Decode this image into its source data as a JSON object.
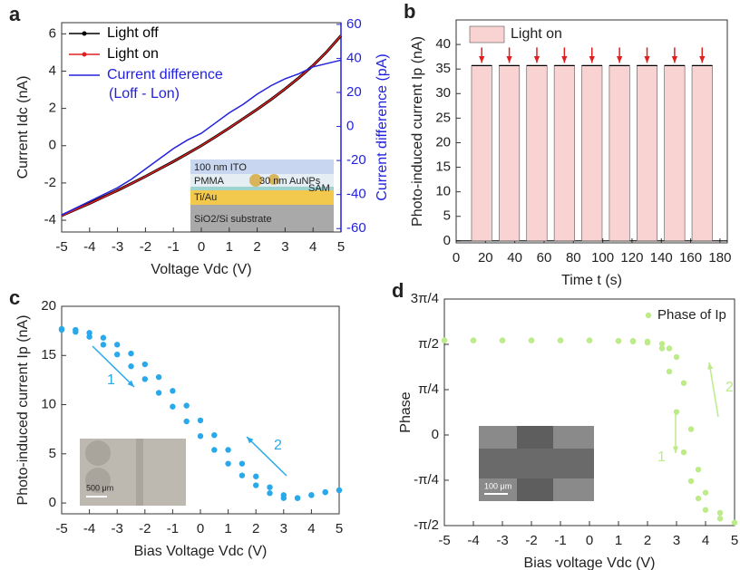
{
  "chart_data": [
    {
      "type": "line",
      "panel_label": "a",
      "xlabel": "Voltage Vdc (V)",
      "ylabel": "Current Idc (nA)",
      "y2label": "Current difference (pA)",
      "x": [
        -5,
        -4.5,
        -4,
        -3.5,
        -3,
        -2.5,
        -2,
        -1.5,
        -1,
        -0.5,
        0,
        0.5,
        1,
        1.5,
        2,
        2.5,
        3,
        3.5,
        4,
        4.5,
        5
      ],
      "series": [
        {
          "name": "Light off",
          "color": "#000000",
          "values": [
            -3.75,
            -3.42,
            -3.1,
            -2.75,
            -2.4,
            -2.03,
            -1.65,
            -1.25,
            -0.85,
            -0.43,
            0,
            0.47,
            0.95,
            1.45,
            1.95,
            2.48,
            3.05,
            3.65,
            4.3,
            5.05,
            5.9
          ]
        },
        {
          "name": "Light on",
          "color": "#e02020",
          "values": [
            -3.76,
            -3.43,
            -3.1,
            -2.76,
            -2.4,
            -2.03,
            -1.65,
            -1.25,
            -0.85,
            -0.43,
            0,
            0.47,
            0.95,
            1.45,
            1.95,
            2.48,
            3.05,
            3.65,
            4.3,
            5.05,
            5.9
          ]
        },
        {
          "name": "Current difference",
          "color": "#2222dd",
          "axis": "y2",
          "values": [
            -52,
            -48,
            -44,
            -40,
            -36,
            -31,
            -25,
            -19,
            -13,
            -8,
            -4,
            2,
            8,
            13,
            19,
            24,
            28,
            31,
            35,
            37,
            39
          ]
        }
      ],
      "legend_note": "(Loff - Lon)",
      "xlim": [
        -5,
        5
      ],
      "xticks": [
        -5,
        -4,
        -3,
        -2,
        -1,
        0,
        1,
        2,
        3,
        4,
        5
      ],
      "ylim": [
        -4.63,
        6.6
      ],
      "yticks": [
        -4,
        -2,
        0,
        2,
        4,
        6
      ],
      "y2lim": [
        -62,
        61
      ],
      "y2ticks": [
        -60,
        -40,
        -20,
        0,
        20,
        40,
        60
      ],
      "inset_labels": [
        "100 nm ITO",
        "PMMA",
        "30 nm AuNPs",
        "SAM",
        "Ti/Au",
        "SiO2/Si substrate"
      ]
    },
    {
      "type": "pulse",
      "panel_label": "b",
      "xlabel": "Time t (s)",
      "ylabel": "Photo-induced current Ip (nA)",
      "series": [
        {
          "name": "Light on",
          "color": "#f9d2d2",
          "start": [
            10.5,
            29.3,
            48.1,
            66.9,
            85.7,
            104.5,
            123.3,
            142.1,
            160.9
          ],
          "end": [
            24.4,
            43.2,
            62.0,
            80.8,
            99.6,
            118.4,
            137.2,
            156.0,
            174.8
          ],
          "values": [
            35.7,
            35.7,
            35.7,
            35.7,
            35.7,
            35.7,
            35.7,
            35.7,
            35.7
          ]
        }
      ],
      "line_color": "#000000",
      "arrow_color": "#e02020",
      "xlim": [
        0,
        185
      ],
      "xticks": [
        0,
        20,
        40,
        60,
        80,
        100,
        120,
        140,
        160,
        180
      ],
      "ylim": [
        -0.4,
        45
      ],
      "yticks": [
        0,
        5,
        10,
        15,
        20,
        25,
        30,
        35,
        40
      ]
    },
    {
      "type": "scatter",
      "panel_label": "c",
      "xlabel": "Bias Voltage Vdc (V)",
      "ylabel": "Photo-induced current Ip (nA)",
      "series": [
        {
          "color": "#29a9ea",
          "x": [
            -5,
            -4.5,
            -4,
            -3.5,
            -3,
            -2.5,
            -2,
            -1.5,
            -1,
            -0.5,
            0,
            0.5,
            1,
            1.5,
            2,
            2.5,
            3,
            3.5,
            4,
            4.5,
            5
          ],
          "values": [
            17.6,
            17.4,
            16.9,
            16.1,
            15.1,
            13.9,
            12.6,
            11.2,
            9.8,
            8.3,
            6.8,
            5.4,
            4.0,
            2.8,
            1.8,
            1.0,
            0.5,
            0.5,
            0.8,
            1.1,
            1.3
          ]
        },
        {
          "color": "#29a9ea",
          "x": [
            -5,
            -4.5,
            -4,
            -3.5,
            -3,
            -2.5,
            -2,
            -1.5,
            -1,
            -0.5,
            0,
            0.5,
            1,
            1.5,
            2,
            2.5,
            3,
            3.5,
            4,
            4.5,
            5
          ],
          "values": [
            17.7,
            17.6,
            17.3,
            16.8,
            16.1,
            15.2,
            14.1,
            12.8,
            11.4,
            9.9,
            8.4,
            6.9,
            5.4,
            4.0,
            2.7,
            1.6,
            0.8,
            0.5,
            0.8,
            1.1,
            1.3
          ]
        }
      ],
      "annotations": [
        "1",
        "2"
      ],
      "scale_bar": "500 μm",
      "xlim": [
        -5,
        5
      ],
      "xticks": [
        -5,
        -4,
        -3,
        -2,
        -1,
        0,
        1,
        2,
        3,
        4,
        5
      ],
      "ylim": [
        -1.1,
        20
      ],
      "yticks": [
        0,
        5,
        10,
        15,
        20
      ]
    },
    {
      "type": "scatter",
      "panel_label": "d",
      "xlabel": "Bias voltage Vdc (V)",
      "ylabel": "Phase",
      "series": [
        {
          "name": "Phase of Ip",
          "color": "#bdeb88",
          "x": [
            -5,
            -4,
            -3,
            -2,
            -1,
            0,
            1,
            1.5,
            2,
            2.5,
            2.75,
            3,
            3.25,
            3.5,
            3.75,
            4,
            4.5,
            5
          ],
          "values": [
            1.64,
            1.64,
            1.64,
            1.64,
            1.64,
            1.64,
            1.63,
            1.62,
            1.6,
            1.5,
            1.1,
            0.4,
            -0.3,
            -0.8,
            -1.1,
            -1.3,
            -1.45,
            -1.52
          ]
        },
        {
          "color": "#bdeb88",
          "x": [
            -5,
            -4,
            -3,
            -2,
            -1,
            0,
            1,
            1.5,
            2,
            2.5,
            2.75,
            3,
            3.25,
            3.5,
            3.75,
            4,
            4.5,
            5
          ],
          "values": [
            1.64,
            1.64,
            1.64,
            1.64,
            1.64,
            1.64,
            1.63,
            1.63,
            1.62,
            1.58,
            1.5,
            1.35,
            0.9,
            0.1,
            -0.6,
            -1.0,
            -1.35,
            -1.52
          ]
        }
      ],
      "annotations": [
        "1",
        "2"
      ],
      "scale_bar": "100 μm",
      "xlim": [
        -5,
        5
      ],
      "xticks": [
        -5,
        -4,
        -3,
        -2,
        -1,
        0,
        1,
        2,
        3,
        4,
        5
      ],
      "ylim": [
        -1.571,
        2.356
      ],
      "yticks": [
        {
          "value": -1.571,
          "label": "-π/2"
        },
        {
          "value": -0.785,
          "label": "-π/4"
        },
        0,
        {
          "value": 0.785,
          "label": "π/4"
        },
        {
          "value": 1.571,
          "label": "π/2"
        },
        {
          "value": 2.356,
          "label": "3π/4"
        }
      ]
    }
  ]
}
